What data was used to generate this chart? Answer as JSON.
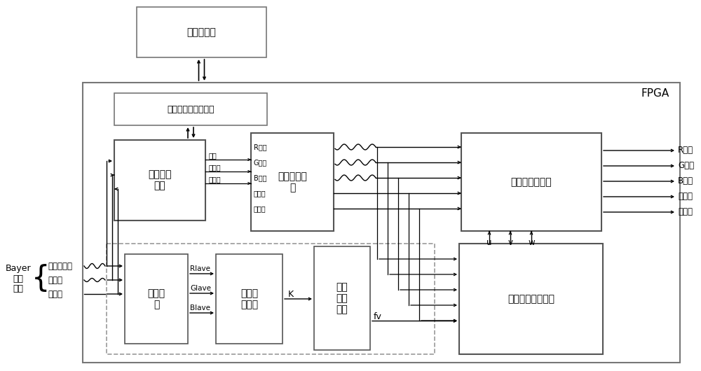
{
  "fpga_label": "FPGA",
  "ext_mem_label": "外部存储器",
  "mem_iface_label": "存储器接口驱动模块",
  "data_conv_label": "数据转换\n模块",
  "img_interp_label": "图像插值模\n块",
  "three_adj_label": "三分量调整模块",
  "stat_label": "统计模\n块",
  "calc_ratio_label": "计算比\n值模块",
  "thresh_gen_label": "阈值\n产生\n模块",
  "calc_coef_label": "计算调整系数模块",
  "bayer_label": "Bayer\n格式\n图像",
  "inputs": [
    "多比特数据",
    "行同步",
    "场同步"
  ],
  "data_conv_signals": [
    "数据",
    "行同步",
    "场同步"
  ],
  "img_interp_out": [
    "R分量",
    "G分量",
    "B分量",
    "行同步",
    "场同步"
  ],
  "outputs": [
    "R分量",
    "G分量",
    "B分量",
    "行同步",
    "场同步"
  ],
  "stat_outputs": [
    "Rlave",
    "Glave",
    "Blave"
  ],
  "uvw_labels": [
    "u",
    "v",
    "w"
  ],
  "K_label": "K",
  "fv_label": "fv",
  "brace_label": "{"
}
